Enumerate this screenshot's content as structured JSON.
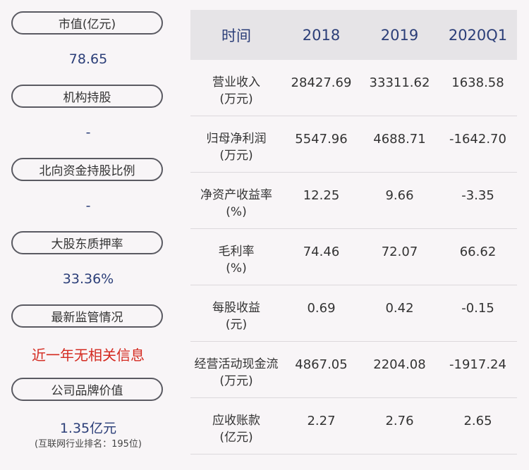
{
  "left_panel": {
    "items": [
      {
        "label": "市值(亿元)",
        "value": "78.65"
      },
      {
        "label": "机构持股",
        "value": "-"
      },
      {
        "label": "北向资金持股比例",
        "value": "-"
      },
      {
        "label": "大股东质押率",
        "value": "33.36%"
      },
      {
        "label": "最新监管情况",
        "value": "近一年无相关信息"
      },
      {
        "label": "公司品牌价值",
        "value": "1.35亿元",
        "sub": "(互联网行业排名：195位)"
      }
    ]
  },
  "table": {
    "headers": [
      "时间",
      "2018",
      "2019",
      "2020Q1"
    ],
    "rows": [
      {
        "label": "营业收入",
        "unit": "(万元)",
        "values": [
          "28427.69",
          "33311.62",
          "1638.58"
        ]
      },
      {
        "label": "归母净利润",
        "unit": "(万元)",
        "values": [
          "5547.96",
          "4688.71",
          "-1642.70"
        ]
      },
      {
        "label": "净资产收益率",
        "unit": "(%)",
        "values": [
          "12.25",
          "9.66",
          "-3.35"
        ]
      },
      {
        "label": "毛利率",
        "unit": "(%)",
        "values": [
          "74.46",
          "72.07",
          "66.62"
        ]
      },
      {
        "label": "每股收益",
        "unit": "(元)",
        "values": [
          "0.69",
          "0.42",
          "-0.15"
        ]
      },
      {
        "label": "经营活动现金流",
        "unit": "(万元)",
        "values": [
          "4867.05",
          "2204.08",
          "-1917.24"
        ]
      },
      {
        "label": "应收账款",
        "unit": "(亿元)",
        "values": [
          "2.27",
          "2.76",
          "2.65"
        ]
      }
    ]
  },
  "colors": {
    "value_blue": "#2b3e78",
    "alert_red": "#d42a20",
    "bg": "#f8f5f7",
    "header_bg": "#e6e4e7"
  }
}
